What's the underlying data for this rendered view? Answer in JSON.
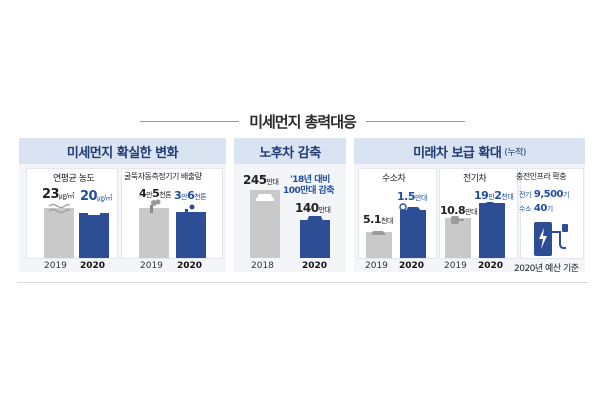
{
  "title": "미세먼지 총력대응",
  "sections": {
    "dust": {
      "header": "미세먼지 확실한 변화",
      "avg": {
        "caption": "연평균 농도",
        "v2019": "23",
        "v2020": "20",
        "unit": "㎍/㎥"
      },
      "chimney": {
        "caption": "굴뚝자동측정기기  배출량",
        "v2019_a": "4",
        "v2019_unit_a": "만",
        "v2019_b": "5",
        "v2019_unit_b": "천톤",
        "v2020_a": "3",
        "v2020_unit_a": "만",
        "v2020_b": "6",
        "v2020_unit_b": "천톤"
      },
      "years": [
        "2019",
        "2020",
        "2019",
        "2020"
      ]
    },
    "oldcar": {
      "header": "노후차 감축",
      "v2018": "245",
      "unit2018": "만대",
      "note_line1": "'18년 대비",
      "note_line2": "100만대 감축",
      "v2020": "140",
      "unit2020": "만대",
      "years": [
        "2018",
        "2020"
      ]
    },
    "future": {
      "header": "미래차 보급 확대",
      "header_sub": "(누적)",
      "hydrogen": {
        "caption": "수소차",
        "v2019": "5.1",
        "u2019": "천대",
        "v2020": "1.5",
        "u2020": "만대"
      },
      "electric": {
        "caption": "전기차",
        "v2019": "10.8",
        "u2019": "만대",
        "v2020_a": "19",
        "v2020_ua": "만",
        "v2020_b": "2",
        "v2020_ub": "천대"
      },
      "infra": {
        "caption": "충전인프라 확충",
        "elec_label": "전기",
        "elec_value": "9,500",
        "elec_unit": "기",
        "h2_label": "수소",
        "h2_value": "40",
        "h2_unit": "기",
        "foot": "2020년 예산 기준"
      },
      "years": [
        "2019",
        "2020",
        "2019",
        "2020"
      ]
    }
  },
  "colors": {
    "header_bg": "#d9e3f1",
    "bar_2020": "#2d4d94",
    "bar_past": "#c9c9c9",
    "accent_text": "#1f4fa0"
  }
}
